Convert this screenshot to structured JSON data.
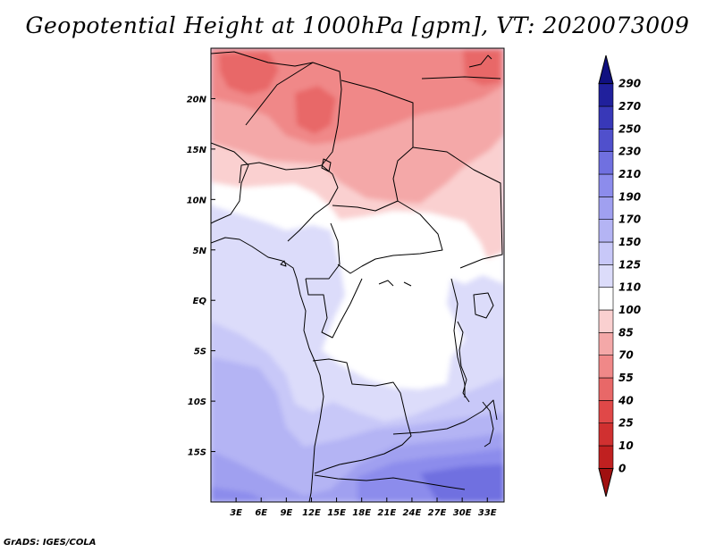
{
  "chart_data": {
    "type": "heatmap",
    "title": "Geopotential Height at 1000hPa [gpm], VT: 2020073009",
    "variable": "Geopotential Height",
    "level": "1000hPa",
    "units": "gpm",
    "valid_time": "2020073009",
    "x_range": [
      0,
      35
    ],
    "y_range": [
      -20,
      25
    ],
    "x_ticks": [
      {
        "value": 3,
        "label": "3E"
      },
      {
        "value": 6,
        "label": "6E"
      },
      {
        "value": 9,
        "label": "9E"
      },
      {
        "value": 12,
        "label": "12E"
      },
      {
        "value": 15,
        "label": "15E"
      },
      {
        "value": 18,
        "label": "18E"
      },
      {
        "value": 21,
        "label": "21E"
      },
      {
        "value": 24,
        "label": "24E"
      },
      {
        "value": 27,
        "label": "27E"
      },
      {
        "value": 30,
        "label": "30E"
      },
      {
        "value": 33,
        "label": "33E"
      }
    ],
    "y_ticks": [
      {
        "value": 20,
        "label": "20N"
      },
      {
        "value": 15,
        "label": "15N"
      },
      {
        "value": 10,
        "label": "10N"
      },
      {
        "value": 5,
        "label": "5N"
      },
      {
        "value": 0,
        "label": "EQ"
      },
      {
        "value": -5,
        "label": "5S"
      },
      {
        "value": -10,
        "label": "10S"
      },
      {
        "value": -15,
        "label": "15S"
      }
    ],
    "colorbar": {
      "levels": [
        "0",
        "10",
        "25",
        "40",
        "55",
        "70",
        "85",
        "100",
        "110",
        "125",
        "150",
        "170",
        "190",
        "210",
        "230",
        "250",
        "270",
        "290"
      ],
      "colors": [
        "#a01010",
        "#c02020",
        "#d03030",
        "#e04848",
        "#e86868",
        "#f08888",
        "#f4a8a8",
        "#fad0d0",
        "#ffffff",
        "#dcdcfa",
        "#c8c8f8",
        "#b4b4f4",
        "#a0a0f0",
        "#8c8cec",
        "#7070e0",
        "#5050cc",
        "#3838b8",
        "#20209c",
        "#101080"
      ]
    },
    "annotation": "GrADS: IGES/COLA"
  }
}
